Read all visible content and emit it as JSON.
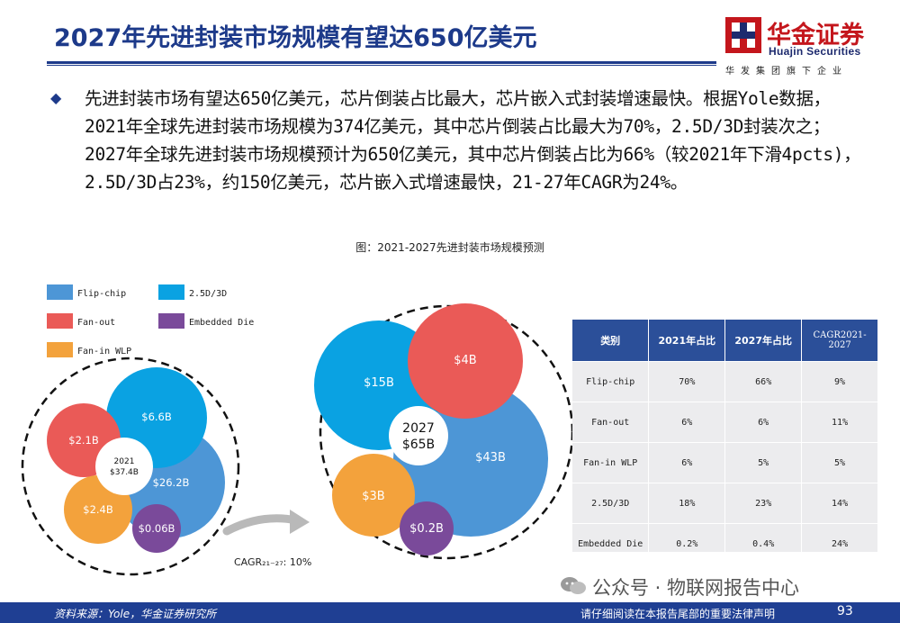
{
  "header": {
    "title": "2027年先进封装市场规模有望达650亿美元",
    "logo_cn": "华金证券",
    "logo_en": "Huajin Securities",
    "logo_sub": "华发集团旗下企业"
  },
  "body": {
    "bullet": "◆",
    "paragraph": "先进封装市场有望达650亿美元，芯片倒装占比最大，芯片嵌入式封装增速最快。根据Yole数据，2021年全球先进封装市场规模为374亿美元，其中芯片倒装占比最大为70%，2.5D/3D封装次之；2027年全球先进封装市场规模预计为650亿美元，其中芯片倒装占比为66%（较2021年下滑4pcts)，2.5D/3D占23%，约150亿美元，芯片嵌入式增速最快，21-27年CAGR为24%。",
    "figure_caption": "图：2021-2027先进封装市场规模预测"
  },
  "colors": {
    "flipchip": "#4d96d6",
    "d25": "#0aa2e2",
    "fanout": "#ea5a57",
    "embedded": "#7a4a9a",
    "fanin": "#f3a23c",
    "brand_blue": "#1d3a8a",
    "brand_red": "#c4161c"
  },
  "chart_data": {
    "type": "bubble",
    "title": "图：2021-2027先进封装市场规模预测",
    "legend": [
      "Flip-chip",
      "2.5D/3D",
      "Fan-out",
      "Embedded Die",
      "Fan-in WLP"
    ],
    "years": [
      {
        "year": "2021",
        "total_label": "2021\n$37.4B",
        "total": 37.4,
        "segments": [
          {
            "name": "Flip-chip",
            "value": 26.2,
            "label": "$26.2B"
          },
          {
            "name": "2.5D/3D",
            "value": 6.6,
            "label": "$6.6B"
          },
          {
            "name": "Fan-out",
            "value": 2.1,
            "label": "$2.1B"
          },
          {
            "name": "Fan-in WLP",
            "value": 2.4,
            "label": "$2.4B"
          },
          {
            "name": "Embedded Die",
            "value": 0.06,
            "label": "$0.06B"
          }
        ]
      },
      {
        "year": "2027",
        "total_label": "2027\n$65B",
        "total": 65,
        "segments": [
          {
            "name": "Flip-chip",
            "value": 43,
            "label": "$43B"
          },
          {
            "name": "2.5D/3D",
            "value": 15,
            "label": "$15B"
          },
          {
            "name": "Fan-out",
            "value": 4,
            "label": "$4B"
          },
          {
            "name": "Fan-in WLP",
            "value": 3,
            "label": "$3B"
          },
          {
            "name": "Embedded Die",
            "value": 0.2,
            "label": "$0.2B"
          }
        ]
      }
    ],
    "arrow_label": "CAGR₂₁₋₂₇: 10%",
    "table": {
      "headers": [
        "类别",
        "2021年占比",
        "2027年占比",
        "CAGR2021-2027"
      ],
      "rows": [
        [
          "Flip-chip",
          "70%",
          "66%",
          "9%"
        ],
        [
          "Fan-out",
          "6%",
          "6%",
          "11%"
        ],
        [
          "Fan-in WLP",
          "6%",
          "5%",
          "5%"
        ],
        [
          "2.5D/3D",
          "18%",
          "23%",
          "14%"
        ],
        [
          "Embedded Die",
          "0.2%",
          "0.4%",
          "24%"
        ]
      ]
    }
  },
  "watermark": "公众号 · 物联网报告中心",
  "footer": {
    "source": "资料来源：Yole，华金证券研究所",
    "disclaimer": "请仔细阅读在本报告尾部的重要法律声明",
    "page": "93"
  }
}
